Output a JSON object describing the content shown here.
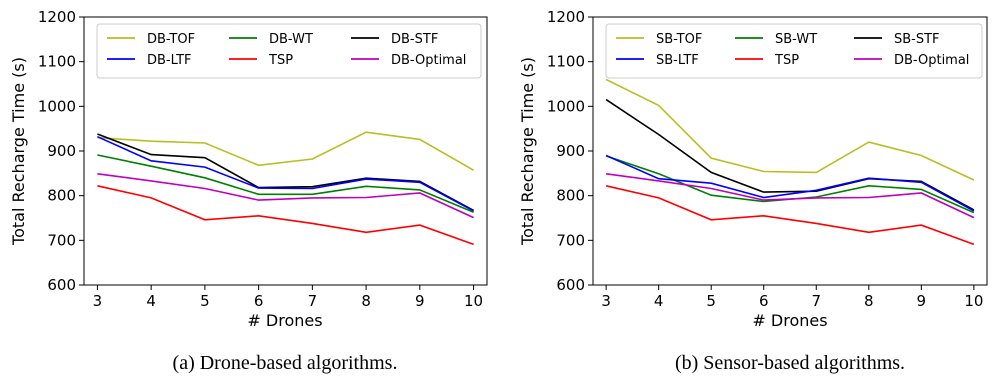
{
  "colors": {
    "TOF": "#bcbd22",
    "WT": "#008000",
    "STF": "#000000",
    "LTF": "#0000ff",
    "TSP": "#ff0000",
    "Optimal": "#bf00bf"
  },
  "chart_data": [
    {
      "type": "line",
      "caption": "(a) Drone-based algorithms.",
      "xlabel": "# Drones",
      "ylabel": "Total Recharge Time (s)",
      "x": [
        3,
        4,
        5,
        6,
        7,
        8,
        9,
        10
      ],
      "xticks": [
        "3",
        "4",
        "5",
        "6",
        "7",
        "8",
        "9",
        "10"
      ],
      "yticks": [
        "600",
        "700",
        "800",
        "900",
        "1000",
        "1100",
        "1200"
      ],
      "xlim": [
        2.75,
        10.25
      ],
      "ylim": [
        600,
        1200
      ],
      "legend": "top, 3 columns",
      "series": [
        {
          "name": "DB-TOF",
          "color": "#bcbd22",
          "values": [
            930,
            922,
            918,
            868,
            882,
            942,
            926,
            857
          ]
        },
        {
          "name": "DB-WT",
          "color": "#008000",
          "values": [
            891,
            866,
            840,
            803,
            803,
            821,
            813,
            763
          ]
        },
        {
          "name": "DB-STF",
          "color": "#000000",
          "values": [
            938,
            892,
            885,
            818,
            820,
            839,
            832,
            767
          ]
        },
        {
          "name": "DB-LTF",
          "color": "#0000ff",
          "values": [
            932,
            878,
            864,
            817,
            816,
            837,
            830,
            766
          ]
        },
        {
          "name": "TSP",
          "color": "#ff0000",
          "values": [
            822,
            795,
            746,
            755,
            738,
            718,
            734,
            691
          ]
        },
        {
          "name": "DB-Optimal",
          "color": "#bf00bf",
          "values": [
            849,
            833,
            816,
            790,
            795,
            796,
            806,
            751
          ]
        }
      ]
    },
    {
      "type": "line",
      "caption": "(b) Sensor-based algorithms.",
      "xlabel": "# Drones",
      "ylabel": "Total Recharge Time (s)",
      "x": [
        3,
        4,
        5,
        6,
        7,
        8,
        9,
        10
      ],
      "xticks": [
        "3",
        "4",
        "5",
        "6",
        "7",
        "8",
        "9",
        "10"
      ],
      "yticks": [
        "600",
        "700",
        "800",
        "900",
        "1000",
        "1100",
        "1200"
      ],
      "xlim": [
        2.75,
        10.25
      ],
      "ylim": [
        600,
        1200
      ],
      "legend": "top, 3 columns",
      "series": [
        {
          "name": "SB-TOF",
          "color": "#bcbd22",
          "values": [
            1060,
            1002,
            884,
            854,
            852,
            920,
            890,
            835
          ]
        },
        {
          "name": "SB-WT",
          "color": "#008000",
          "values": [
            889,
            849,
            801,
            787,
            797,
            822,
            814,
            762
          ]
        },
        {
          "name": "SB-STF",
          "color": "#000000",
          "values": [
            1015,
            937,
            852,
            808,
            810,
            838,
            832,
            768
          ]
        },
        {
          "name": "SB-LTF",
          "color": "#0000ff",
          "values": [
            890,
            838,
            828,
            796,
            812,
            839,
            830,
            766
          ]
        },
        {
          "name": "TSP",
          "color": "#ff0000",
          "values": [
            822,
            795,
            746,
            755,
            738,
            718,
            734,
            691
          ]
        },
        {
          "name": "DB-Optimal",
          "color": "#bf00bf",
          "values": [
            849,
            833,
            816,
            790,
            795,
            796,
            806,
            751
          ]
        }
      ]
    }
  ]
}
